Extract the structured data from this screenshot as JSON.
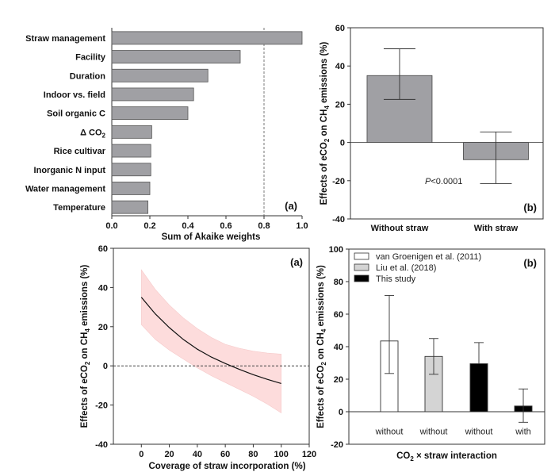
{
  "chart_data": [
    {
      "id": "top-left",
      "type": "bar",
      "orientation": "horizontal",
      "panel_label": "(a)",
      "title": "",
      "xlabel": "Sum of Akaike weights",
      "ylabel": "",
      "xlim": [
        0,
        1
      ],
      "xticks": [
        "0.0",
        "0.2",
        "0.4",
        "0.6",
        "0.8",
        "1.0"
      ],
      "categories": [
        "Straw management",
        "Facility",
        "Duration",
        "Indoor vs. field",
        "Soil organic C",
        "Δ CO2",
        "Rice cultivar",
        "Inorganic N input",
        "Water management",
        "Temperature"
      ],
      "values": [
        1.0,
        0.675,
        0.505,
        0.43,
        0.4,
        0.21,
        0.205,
        0.205,
        0.2,
        0.19
      ],
      "reference_line": {
        "x": 0.8,
        "style": "dashed"
      },
      "bar_color": "#a0a0a4",
      "grid": false
    },
    {
      "id": "top-right",
      "type": "bar",
      "panel_label": "(b)",
      "title": "",
      "xlabel": "",
      "ylabel": "Effects of eCO2 on CH4 emissions (%)",
      "ylim": [
        -40,
        60
      ],
      "yticks": [
        "-40",
        "-20",
        "0",
        "20",
        "40",
        "60"
      ],
      "categories": [
        "Without straw",
        "With straw"
      ],
      "values": [
        35,
        -9
      ],
      "ci_lower": [
        22.5,
        -21.5
      ],
      "ci_upper": [
        49,
        5.5
      ],
      "annotation": {
        "prefix": "P",
        "text": "<0.0001"
      },
      "bar_color": "#a0a0a4",
      "grid": false
    },
    {
      "id": "bottom-left",
      "type": "line",
      "panel_label": "(a)",
      "title": "",
      "xlabel": "Coverage of straw incorporation (%)",
      "ylabel": "Effects of eCO2 on CH4 emissions (%)",
      "xlim": [
        -20,
        120
      ],
      "ylim": [
        -40,
        60
      ],
      "xticks": [
        "0",
        "20",
        "40",
        "60",
        "80",
        "100",
        "120"
      ],
      "yticks": [
        "-40",
        "-20",
        "0",
        "20",
        "40",
        "60"
      ],
      "series": [
        {
          "name": "fit",
          "x": [
            0,
            10,
            20,
            30,
            40,
            50,
            60,
            70,
            80,
            90,
            100
          ],
          "y": [
            35,
            26.5,
            19.5,
            13.5,
            8.5,
            4.5,
            1.2,
            -1.8,
            -4.5,
            -6.9,
            -9
          ]
        },
        {
          "name": "upper_ci",
          "x": [
            0,
            10,
            20,
            30,
            40,
            50,
            60,
            70,
            80,
            90,
            100
          ],
          "y": [
            49,
            39,
            31,
            24.5,
            19,
            14.5,
            11,
            9,
            7.5,
            6.5,
            6
          ]
        },
        {
          "name": "lower_ci",
          "x": [
            0,
            10,
            20,
            30,
            40,
            50,
            60,
            70,
            80,
            90,
            100
          ],
          "y": [
            21,
            13.5,
            8,
            3.5,
            -1,
            -5,
            -8.5,
            -12,
            -15.5,
            -19.5,
            -24
          ]
        }
      ],
      "reference_line": {
        "y": 0,
        "style": "dashed"
      },
      "band_color": "#fddcdc",
      "line_color": "#111111",
      "grid": false
    },
    {
      "id": "bottom-right",
      "type": "bar",
      "panel_label": "(b)",
      "title": "",
      "xlabel": "CO2 × straw interaction",
      "ylabel": "Effects of eCO2 on CH4 emissions (%)",
      "ylim": [
        -20,
        100
      ],
      "yticks": [
        "-20",
        "0",
        "20",
        "40",
        "60",
        "80",
        "100"
      ],
      "categories": [
        "without",
        "without",
        "without",
        "with"
      ],
      "values": [
        43.5,
        34,
        29.5,
        3.5
      ],
      "ci_lower": [
        23.5,
        23,
        null,
        -6.5
      ],
      "ci_upper": [
        71.5,
        45,
        42.5,
        14
      ],
      "bar_series": [
        "van Groenigen et al. (2011)",
        "Liu et al. (2018)",
        "This study",
        "This study"
      ],
      "legend": [
        {
          "label": "van Groenigen et al. (2011)",
          "color": "#ffffff"
        },
        {
          "label": "Liu et al. (2018)",
          "color": "#d4d4d4"
        },
        {
          "label": "This study",
          "color": "#000000"
        }
      ],
      "legend_position": "top-left",
      "grid": false
    }
  ]
}
